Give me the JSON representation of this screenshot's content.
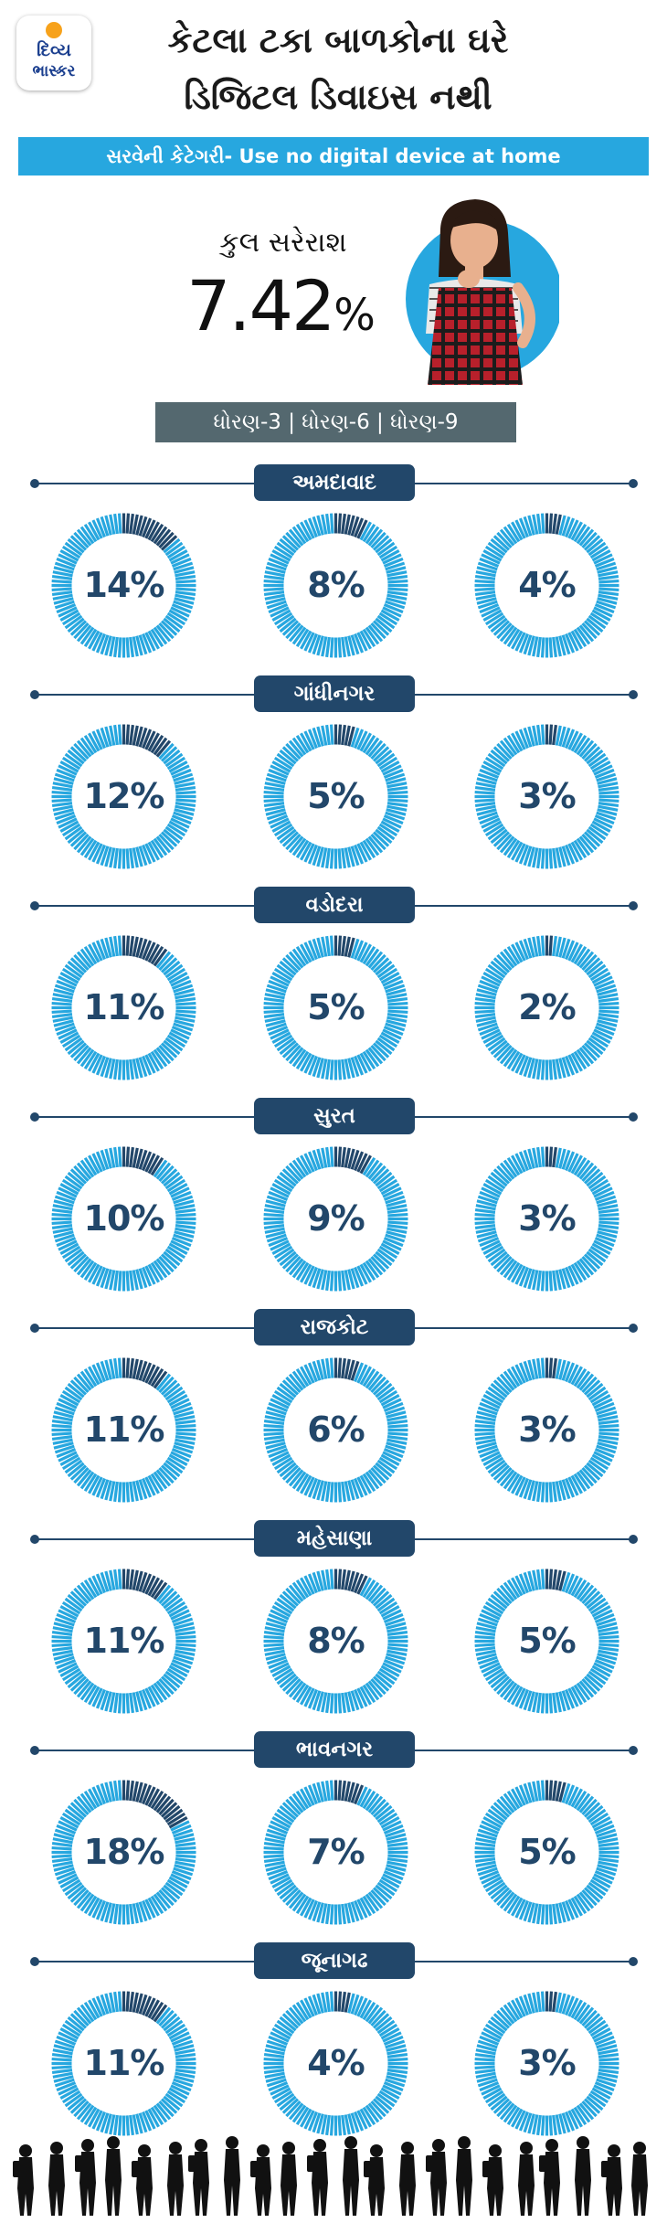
{
  "logo": {
    "line1": "દિવ્ય",
    "line2": "ભાસ્કર"
  },
  "title": {
    "line1": "કેટલા ટકા બાળકોના ઘરે",
    "line2": "ડિજિટલ ડિવાઇસ નથી"
  },
  "banner": "સરવેની કેટેગરી- Use no digital device at home",
  "average": {
    "label": "કુલ સરેરાશ",
    "value": "7.42",
    "unit": "%"
  },
  "grades_label": "ધોરણ-3 | ધોરણ-6 | ધોરણ-9",
  "colors": {
    "ring": "#27a7df",
    "ring_segment_dark": "#22476a",
    "tag": "#22476a",
    "banner": "#27a7df",
    "grade_bar": "#54686f"
  },
  "chart_data": {
    "type": "donut",
    "series": [
      {
        "name": "ધોરણ-3"
      },
      {
        "name": "ધોરણ-6"
      },
      {
        "name": "ધોરણ-9"
      }
    ],
    "categories": [
      "અમદાવાદ",
      "ગાંધીનગર",
      "વડોદરા",
      "સુરત",
      "રાજકોટ",
      "મહેસાણા",
      "ભાવનગર",
      "જૂનાગઢ"
    ],
    "cities": [
      {
        "name": "અમદાવાદ",
        "values": [
          14,
          8,
          4
        ],
        "labels": [
          "14%",
          "8%",
          "4%"
        ]
      },
      {
        "name": "ગાંધીનગર",
        "values": [
          12,
          5,
          3
        ],
        "labels": [
          "12%",
          "5%",
          "3%"
        ]
      },
      {
        "name": "વડોદરા",
        "values": [
          11,
          5,
          2
        ],
        "labels": [
          "11%",
          "5%",
          "2%"
        ]
      },
      {
        "name": "સુરત",
        "values": [
          10,
          9,
          3
        ],
        "labels": [
          "10%",
          "9%",
          "3%"
        ]
      },
      {
        "name": "રાજકોટ",
        "values": [
          11,
          6,
          3
        ],
        "labels": [
          "11%",
          "6%",
          "3%"
        ]
      },
      {
        "name": "મહેસાણા",
        "values": [
          11,
          8,
          5
        ],
        "labels": [
          "11%",
          "8%",
          "5%"
        ]
      },
      {
        "name": "ભાવનગર",
        "values": [
          18,
          7,
          5
        ],
        "labels": [
          "18%",
          "7%",
          "5%"
        ]
      },
      {
        "name": "જૂનાગઢ",
        "values": [
          11,
          4,
          3
        ],
        "labels": [
          "11%",
          "4%",
          "3%"
        ]
      }
    ]
  }
}
